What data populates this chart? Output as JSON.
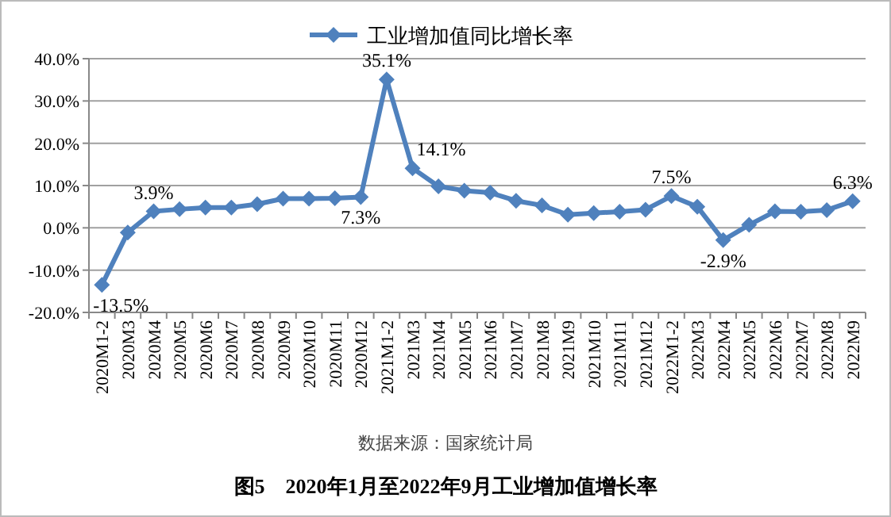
{
  "chart_data": {
    "type": "line",
    "title": "图5　2020年1月至2022年9月工业增加值增长率",
    "annotations": [
      "数据来源：国家统计局"
    ],
    "categories": [
      "2020M1-2",
      "2020M3",
      "2020M4",
      "2020M5",
      "2020M6",
      "2020M7",
      "2020M8",
      "2020M9",
      "2020M10",
      "2020M11",
      "2020M12",
      "2021M1-2",
      "2021M3",
      "2021M4",
      "2021M5",
      "2021M6",
      "2021M7",
      "2021M8",
      "2021M9",
      "2021M10",
      "2021M11",
      "2021M12",
      "2022M1-2",
      "2022M3",
      "2022M4",
      "2022M5",
      "2022M6",
      "2022M7",
      "2022M8",
      "2022M9"
    ],
    "series": [
      {
        "name": "工业增加值同比增长率",
        "color": "#4f81bd",
        "values": [
          -13.5,
          -1.1,
          3.9,
          4.4,
          4.8,
          4.8,
          5.6,
          6.9,
          6.9,
          7.0,
          7.3,
          35.1,
          14.1,
          9.8,
          8.8,
          8.3,
          6.4,
          5.3,
          3.1,
          3.5,
          3.8,
          4.3,
          7.5,
          5.0,
          -2.9,
          0.7,
          3.9,
          3.8,
          4.2,
          6.3
        ],
        "value_labels": [
          "-13.5%",
          null,
          "3.9%",
          null,
          null,
          null,
          null,
          null,
          null,
          null,
          "7.3%",
          "35.1%",
          "14.1%",
          null,
          null,
          null,
          null,
          null,
          null,
          null,
          null,
          null,
          "7.5%",
          null,
          "-2.9%",
          null,
          null,
          null,
          null,
          "6.3%"
        ]
      }
    ],
    "ylim": [
      -20,
      40
    ],
    "yticks": [
      {
        "value": -20,
        "label": "-20.0%"
      },
      {
        "value": -10,
        "label": "-10.0%"
      },
      {
        "value": 0,
        "label": "0.0%"
      },
      {
        "value": 10,
        "label": "10.0%"
      },
      {
        "value": 20,
        "label": "20.0%"
      },
      {
        "value": 30,
        "label": "30.0%"
      },
      {
        "value": 40,
        "label": "40.0%"
      }
    ],
    "grid": "y",
    "legend": "top",
    "marker": "diamond",
    "line_style": "solid"
  }
}
